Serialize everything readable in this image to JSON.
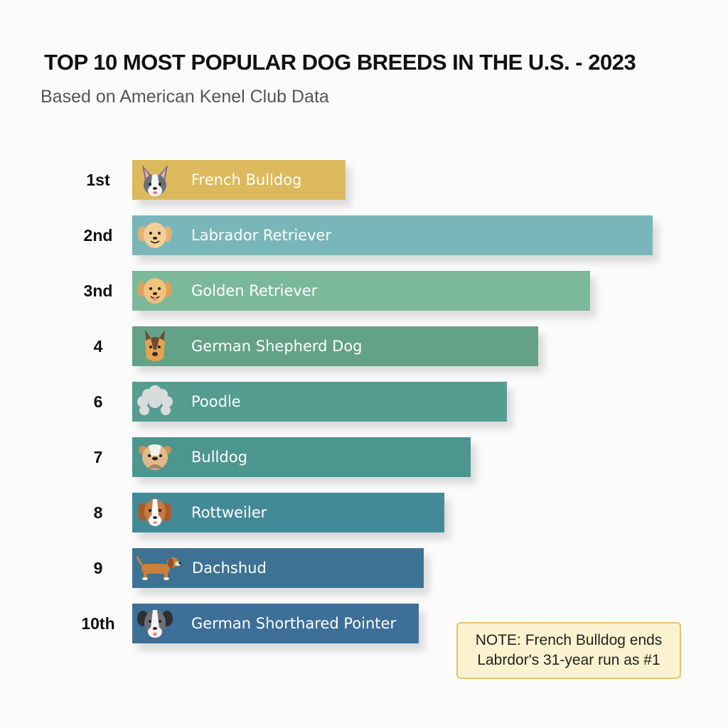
{
  "chart_data": {
    "type": "bar",
    "orientation": "horizontal",
    "title": "TOP 10 MOST POPULAR DOG BREEDS IN THE U.S. - 2023",
    "subtitle": "Based on American Kenel Club Data",
    "xlabel": "",
    "ylabel": "",
    "value_note": "No axis shown; values are relative bar lengths (fraction of longest bar)",
    "categories": [
      "French Bulldog",
      "Labrador Retriever",
      "Golden Retriever",
      "German Shepherd Dog",
      "Poodle",
      "Bulldog",
      "Rottweiler",
      "Dachshud",
      "German Shorthared Pointer"
    ],
    "ranks": [
      "1st",
      "2nd",
      "3nd",
      "4",
      "6",
      "7",
      "8",
      "9",
      "10th"
    ],
    "values": [
      0.41,
      1.0,
      0.88,
      0.78,
      0.72,
      0.65,
      0.6,
      0.56,
      0.55
    ],
    "colors": [
      "#dcb95c",
      "#79b6b9",
      "#7cb89a",
      "#63a286",
      "#559c91",
      "#4d958f",
      "#438a98",
      "#3d7294",
      "#3d6f99"
    ],
    "icons": [
      "french-bulldog-icon",
      "labrador-icon",
      "golden-retriever-icon",
      "german-shepherd-icon",
      "poodle-icon",
      "bulldog-icon",
      "rottweiler-icon",
      "dachshund-icon",
      "pointer-icon"
    ],
    "annotation": {
      "line1": "NOTE: French Bulldog ends",
      "line2": "Labrdor's 31-year run as #1",
      "background": "#fbf2cf",
      "border": "#e6c56b"
    },
    "grid": false,
    "legend": "none"
  }
}
